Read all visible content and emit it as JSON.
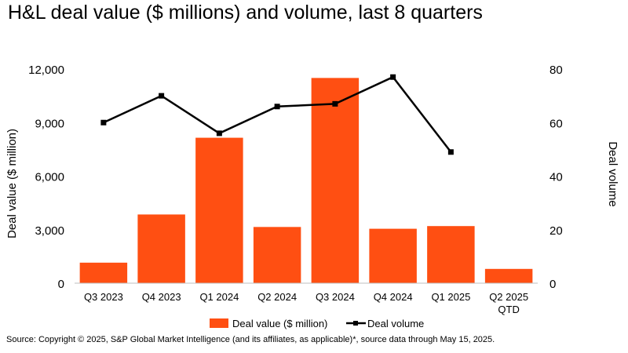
{
  "title": "H&L deal value ($ millions) and volume, last 8 quarters",
  "source": "Source: Copyright © 2025, S&P Global Market Intelligence (and its affiliates, as applicable)*, source data through May 15, 2025.",
  "colors": {
    "bar": "#FF4F12",
    "line": "#000000",
    "axis": "#bfbfbf"
  },
  "chart_data": {
    "type": "bar",
    "categories": [
      [
        "Q3 2023"
      ],
      [
        "Q4 2023"
      ],
      [
        "Q1 2024"
      ],
      [
        "Q2 2024"
      ],
      [
        "Q3 2024"
      ],
      [
        "Q4 2024"
      ],
      [
        "Q1 2025"
      ],
      [
        "Q2 2025",
        "QTD"
      ]
    ],
    "series": [
      {
        "name": "Deal value ($ million)",
        "type": "bar",
        "axis": "left",
        "values": [
          1150,
          3850,
          8150,
          3150,
          11500,
          3050,
          3200,
          800
        ]
      },
      {
        "name": "Deal volume",
        "type": "line",
        "axis": "right",
        "values": [
          60,
          70,
          56,
          66,
          67,
          77,
          49,
          null
        ]
      }
    ],
    "ylabel": "Deal value ($ million)",
    "y2label": "Deal volume",
    "ylim": [
      0,
      12000
    ],
    "y2lim": [
      0,
      80
    ],
    "yticks": [
      "0",
      "3,000",
      "6,000",
      "9,000",
      "12,000"
    ],
    "y2ticks": [
      "0",
      "20",
      "40",
      "60",
      "80"
    ],
    "grid": false,
    "legend_position": "bottom"
  }
}
